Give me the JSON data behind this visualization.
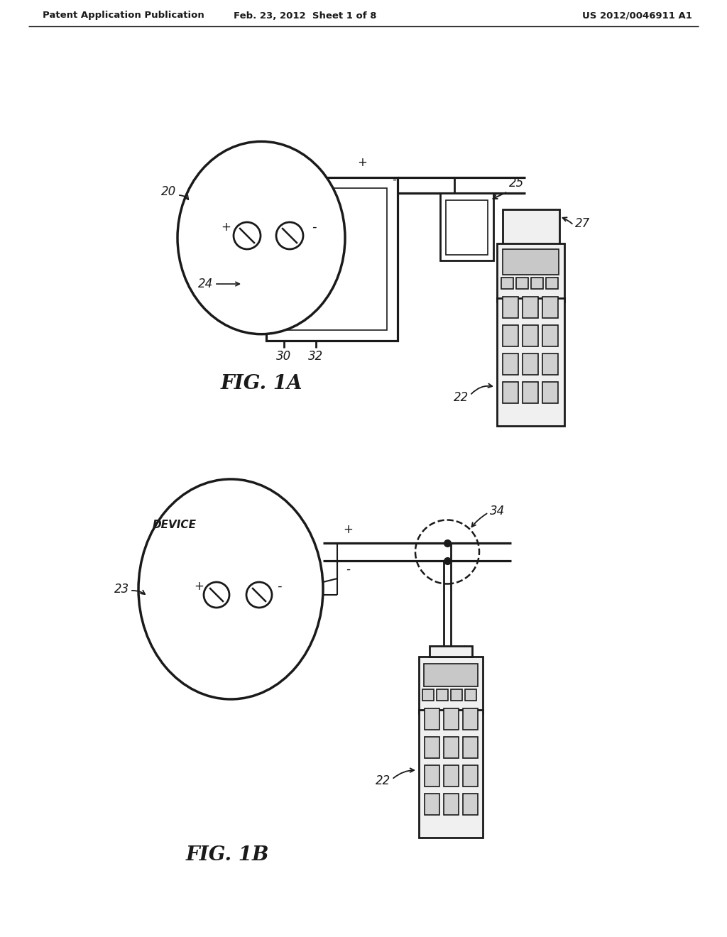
{
  "bg_color": "#ffffff",
  "line_color": "#1a1a1a",
  "header_left": "Patent Application Publication",
  "header_mid": "Feb. 23, 2012  Sheet 1 of 8",
  "header_right": "US 2012/0046911 A1",
  "fig1a_label": "FIG. 1A",
  "fig1b_label": "FIG. 1B",
  "label_20": "20",
  "label_23": "23",
  "label_device": "DEVICE",
  "label_24": "24",
  "label_25": "25",
  "label_27": "27",
  "label_22a": "22",
  "label_22b": "22",
  "label_30": "30",
  "label_32": "32",
  "label_34": "34"
}
